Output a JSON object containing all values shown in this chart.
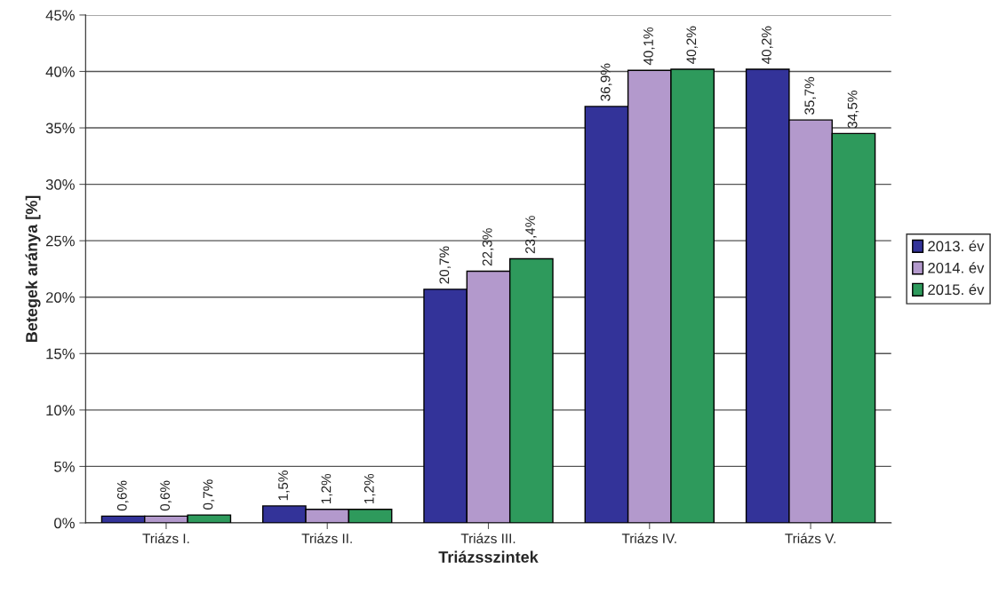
{
  "chart_data": {
    "type": "bar",
    "xlabel": "Triázsszintek",
    "ylabel": "Betegek aránya [%]",
    "categories": [
      "Triázs I.",
      "Triázs II.",
      "Triázs III.",
      "Triázs IV.",
      "Triázs V."
    ],
    "series": [
      {
        "name": "2013. év",
        "color": "#333399",
        "values": [
          0.6,
          1.5,
          20.7,
          36.9,
          40.2
        ],
        "value_labels": [
          "0,6%",
          "1,5%",
          "20,7%",
          "36,9%",
          "40,2%"
        ]
      },
      {
        "name": "2014. év",
        "color": "#b399cc",
        "values": [
          0.6,
          1.2,
          22.3,
          40.1,
          35.7
        ],
        "value_labels": [
          "0,6%",
          "1,2%",
          "22,3%",
          "40,1%",
          "35,7%"
        ]
      },
      {
        "name": "2015. év",
        "color": "#2e9a5c",
        "values": [
          0.7,
          1.2,
          23.4,
          40.2,
          34.5
        ],
        "value_labels": [
          "0,7%",
          "1,2%",
          "23,4%",
          "40,2%",
          "34,5%"
        ]
      }
    ],
    "ylim": [
      0,
      45
    ],
    "yticks": [
      {
        "value": 0,
        "label": "0%"
      },
      {
        "value": 5,
        "label": "5%"
      },
      {
        "value": 10,
        "label": "10%"
      },
      {
        "value": 15,
        "label": "15%"
      },
      {
        "value": 20,
        "label": "20%"
      },
      {
        "value": 25,
        "label": "25%"
      },
      {
        "value": 30,
        "label": "30%"
      },
      {
        "value": 35,
        "label": "35%"
      },
      {
        "value": 40,
        "label": "40%"
      },
      {
        "value": 45,
        "label": "45%"
      }
    ],
    "grid": "y",
    "legend": "right"
  }
}
